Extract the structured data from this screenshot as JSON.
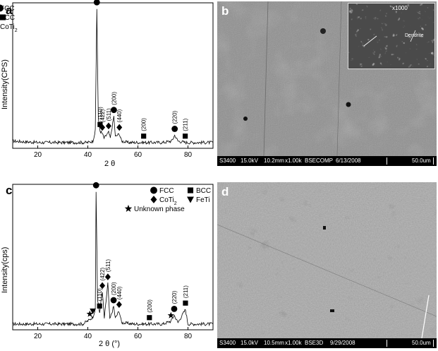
{
  "panel_a": {
    "letter": "a",
    "ylabel": "Intensity(CPS)",
    "xlabel": "2 θ",
    "legend": [
      {
        "symbol": "circle",
        "label": "FCC"
      },
      {
        "symbol": "square",
        "label": "BCC"
      },
      {
        "symbol": "diamond",
        "label": "CoTi",
        "sub": "2"
      }
    ],
    "peak_labels": [
      {
        "text": "(111)",
        "x": 43.6,
        "symbol": "circle"
      },
      {
        "text": "(110)",
        "x": 44.9,
        "symbol": "square"
      },
      {
        "text": "(422)",
        "x": 45.8,
        "symbol": "diamond"
      },
      {
        "text": "(511)",
        "x": 48.3,
        "symbol": "diamond"
      },
      {
        "text": "(200)",
        "x": 50.4,
        "symbol": "circle"
      },
      {
        "text": "(440)",
        "x": 52.6,
        "symbol": "diamond"
      },
      {
        "text": "(200)",
        "x": 62.3,
        "symbol": "square"
      },
      {
        "text": "(220)",
        "x": 74.7,
        "symbol": "circle"
      },
      {
        "text": "(211)",
        "x": 78.9,
        "symbol": "square"
      }
    ]
  },
  "panel_c": {
    "letter": "c",
    "ylabel": "Intensity(cps)",
    "xlabel": "2 θ (°)",
    "legend": [
      {
        "symbol": "circle",
        "label": "FCC"
      },
      {
        "symbol": "square",
        "label": "BCC"
      },
      {
        "symbol": "diamond",
        "label": "CoTi",
        "sub": "2"
      },
      {
        "symbol": "triangle",
        "label": "FeTi"
      },
      {
        "symbol": "star",
        "label": "Unknown phase"
      }
    ],
    "peak_labels": [
      {
        "text": "(111)",
        "x": 43.3,
        "symbol": "circle"
      },
      {
        "text": "(110)",
        "x": 44.7,
        "symbol": "square"
      },
      {
        "text": "(422)",
        "x": 45.8,
        "symbol": "diamond"
      },
      {
        "text": "(511)",
        "x": 48.0,
        "symbol": "diamond"
      },
      {
        "text": "(200)",
        "x": 50.3,
        "symbol": "circle"
      },
      {
        "text": "(440)",
        "x": 52.5,
        "symbol": "diamond"
      },
      {
        "text": "(200)",
        "x": 64.6,
        "symbol": "square"
      },
      {
        "text": "(220)",
        "x": 74.5,
        "symbol": "circle"
      },
      {
        "text": "(211)",
        "x": 79.0,
        "symbol": "square"
      }
    ],
    "extra_markers": [
      {
        "x": 40.8,
        "symbol": "star"
      },
      {
        "x": 42.0,
        "symbol": "triangle"
      },
      {
        "x": 73.2,
        "symbol": "star"
      }
    ]
  },
  "chart_data": [
    {
      "type": "line",
      "ylabel": "Intensity(CPS)",
      "xlabel": "2 θ",
      "xlim": [
        10,
        90
      ],
      "xticks": [
        20,
        40,
        60,
        80
      ],
      "ylim": [
        0,
        100
      ],
      "series": [
        {
          "x": [
            10,
            20,
            30,
            38,
            40,
            42,
            43,
            43.6,
            44.2,
            44.9,
            45.8,
            46.5,
            48.3,
            49,
            50.4,
            51,
            52.6,
            53.5,
            56,
            60,
            62.3,
            65,
            70,
            73.5,
            74.7,
            76,
            79,
            85,
            90
          ],
          "y": [
            5,
            4,
            4,
            4,
            4,
            5,
            12,
            96,
            20,
            12,
            10,
            7,
            11,
            7,
            22,
            8,
            10,
            5,
            4,
            4,
            4,
            4,
            4,
            5,
            9,
            5,
            4,
            4,
            4
          ]
        }
      ]
    },
    {
      "type": "line",
      "ylabel": "Intensity(cps)",
      "xlabel": "2 θ (°)",
      "xlim": [
        10,
        90
      ],
      "xticks": [
        20,
        40,
        60,
        80
      ],
      "ylim": [
        0,
        100
      ],
      "series": [
        {
          "x": [
            10,
            20,
            30,
            38,
            40.8,
            42,
            43,
            43.3,
            43.9,
            44.7,
            45.8,
            46.6,
            48.0,
            48.8,
            50.3,
            51,
            52.5,
            53.5,
            58,
            64.6,
            66,
            70,
            73.2,
            74.5,
            76,
            79,
            80,
            85,
            90
          ],
          "y": [
            4,
            4,
            4,
            4,
            7,
            9,
            14,
            95,
            20,
            12,
            26,
            8,
            32,
            7,
            16,
            8,
            13,
            5,
            4,
            4,
            4,
            4,
            6,
            10,
            5,
            14,
            4,
            4,
            4
          ]
        }
      ]
    }
  ],
  "panel_b": {
    "letter": "b",
    "bar": {
      "instrument": "S3400",
      "voltage": "15.0kV",
      "wd": "10.2mm",
      "mag": "x1.00k",
      "mode": "BSECOMP",
      "date": "6/13/2008",
      "scale": "50.0um"
    },
    "inset": {
      "mag": "x1000",
      "label_left": "",
      "label_right": "Dendrite"
    }
  },
  "panel_d": {
    "letter": "d",
    "bar": {
      "instrument": "S3400",
      "voltage": "15.0kV",
      "wd": "10.5mm",
      "mag": "x1.00k",
      "mode": "BSE3D",
      "date": "9/29/2008",
      "scale": "50.0um"
    }
  }
}
